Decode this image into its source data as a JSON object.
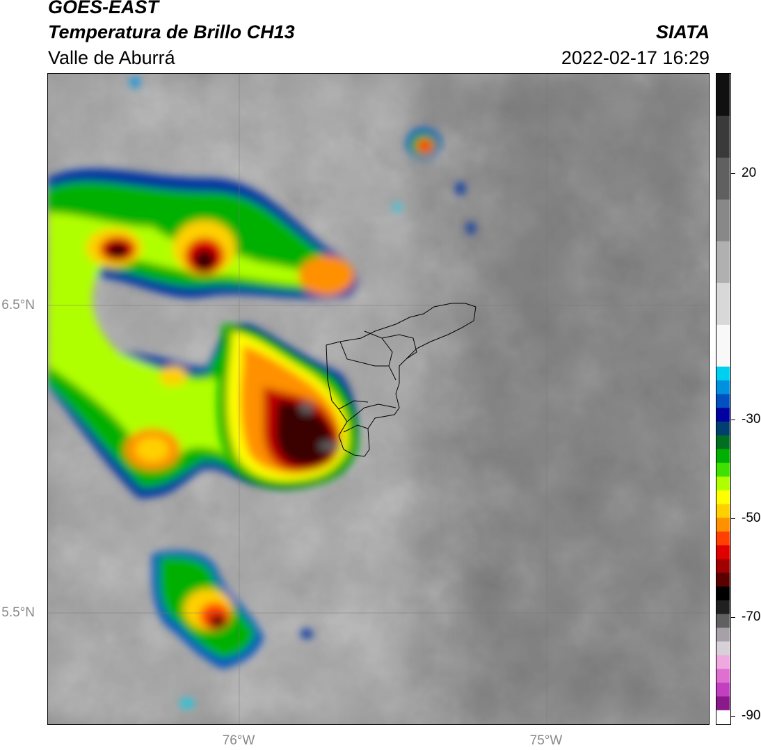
{
  "header": {
    "satellite": "GOES-EAST",
    "product": "Temperatura de Brillo CH13",
    "region": "Valle de Aburrá",
    "org": "SIATA",
    "datetime": "2022-02-17 16:29"
  },
  "axes": {
    "lat_labels": [
      "6.5°N",
      "5.5°N"
    ],
    "lon_labels": [
      "76°W",
      "75°W"
    ]
  },
  "colorbar": {
    "tick_labels": [
      "20",
      "-30",
      "-50",
      "-70",
      "-90"
    ],
    "colors": [
      "#ffffff",
      "#8a1a8a",
      "#c040c0",
      "#e070d0",
      "#f0a8e0",
      "#d8d0d8",
      "#a8a0a8",
      "#606060",
      "#202020",
      "#000000",
      "#5a0000",
      "#a00000",
      "#e00000",
      "#ff4000",
      "#ff9000",
      "#ffd000",
      "#ffff00",
      "#b0ff00",
      "#40e000",
      "#00b000",
      "#007020",
      "#004070",
      "#0000a0",
      "#0050c0",
      "#0090e0",
      "#00d0f0",
      "#f8f8f8",
      "#d8d8d8",
      "#b0b0b0",
      "#888888",
      "#606060",
      "#3a3a3a",
      "#101010"
    ]
  },
  "map": {
    "title": "Temperatura de Brillo CH13",
    "lat_range": [
      5.15,
      7.25
    ],
    "lon_range": [
      -76.62,
      -74.47
    ],
    "storm_cells_lon_lat": [
      {
        "lon": -76.38,
        "lat": 6.68,
        "peak_c": -72
      },
      {
        "lon": -76.13,
        "lat": 6.65,
        "peak_c": -68
      },
      {
        "lon": -75.8,
        "lat": 6.22,
        "peak_c": -80
      },
      {
        "lon": -76.07,
        "lat": 5.47,
        "peak_c": -70
      },
      {
        "lon": -75.62,
        "lat": 7.0,
        "peak_c": -62
      }
    ]
  }
}
